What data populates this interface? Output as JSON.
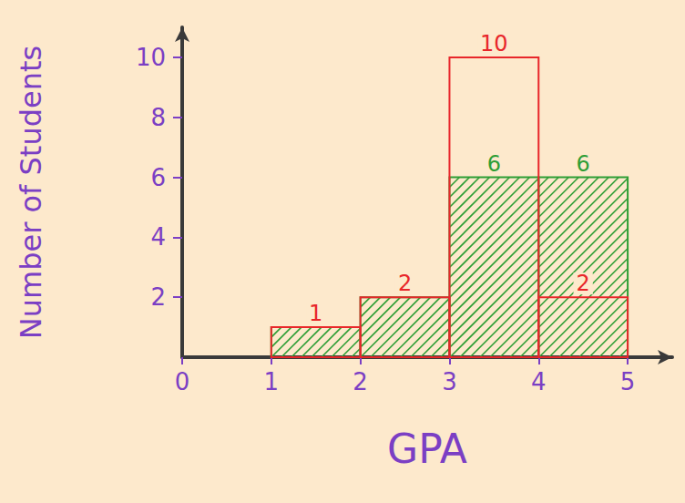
{
  "chart_data": {
    "type": "histogram",
    "x_label": "GPA",
    "y_label": "Number of Students",
    "bins": [
      1,
      2,
      3,
      4,
      5
    ],
    "series": [
      {
        "color": "#2e9e35",
        "values": [
          1,
          2,
          6,
          6
        ],
        "value_labels": [
          null,
          null,
          "6",
          "6"
        ]
      },
      {
        "color": "#e8262a",
        "values": [
          1,
          2,
          10,
          2
        ]
      }
    ],
    "xlim": [
      0,
      5.5
    ],
    "xticks": [
      0,
      1,
      2,
      3,
      4,
      5
    ],
    "ylim": [
      0,
      11
    ],
    "yticks": [
      2,
      4,
      6,
      8,
      10
    ],
    "grid": false,
    "data_labels": true
  }
}
